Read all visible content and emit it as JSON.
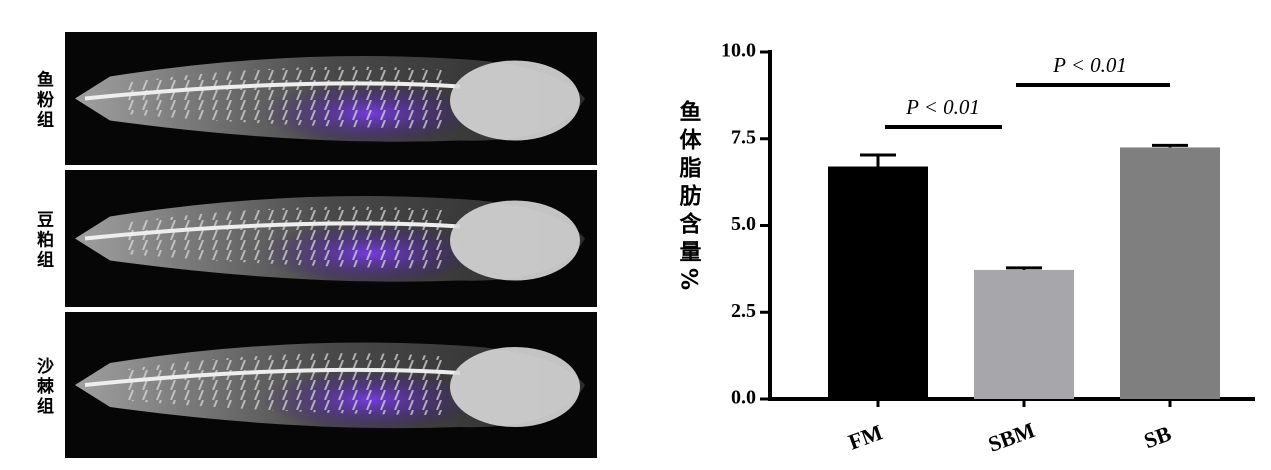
{
  "panels": [
    {
      "label": "鱼粉组"
    },
    {
      "label": "豆粕组"
    },
    {
      "label": "沙棘组"
    }
  ],
  "chart_data": {
    "type": "bar",
    "ylabel": "鱼体脂肪含量%",
    "categories": [
      "FM",
      "SBM",
      "SB"
    ],
    "values": [
      6.7,
      3.72,
      7.25
    ],
    "errors": [
      0.33,
      0.06,
      0.06
    ],
    "colors": [
      "#000000",
      "#a6a6ab",
      "#7f7f7f"
    ],
    "ylim": [
      0,
      10
    ],
    "yticks": [
      {
        "value": 0,
        "label": "0.0"
      },
      {
        "value": 2.5,
        "label": "2.5"
      },
      {
        "value": 5,
        "label": "5.0"
      },
      {
        "value": 7.5,
        "label": "7.5"
      },
      {
        "value": 10,
        "label": "10.0"
      }
    ],
    "annotations": [
      {
        "text": "P < 0.01"
      },
      {
        "text": "P < 0.01"
      }
    ]
  }
}
